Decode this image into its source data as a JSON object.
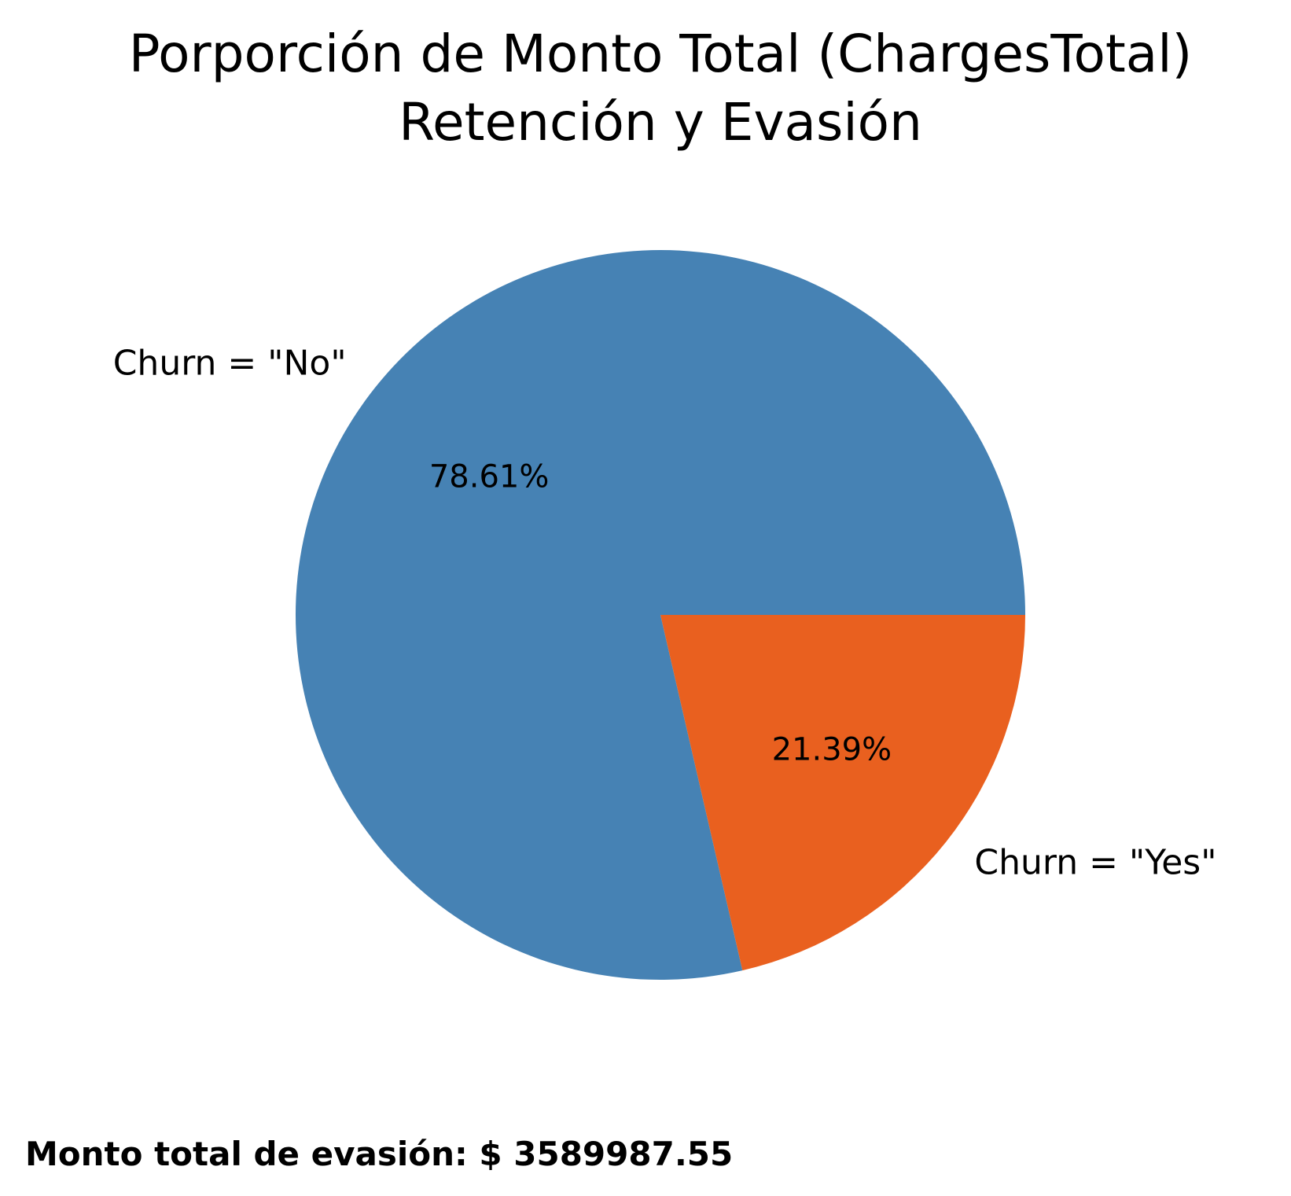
{
  "chart_data": {
    "type": "pie",
    "title_lines": [
      "Porporción de Monto Total (ChargesTotal)",
      "Retención y Evasión"
    ],
    "labels": [
      "Churn = \"No\"",
      "Churn = \"Yes\""
    ],
    "values": [
      78.61,
      21.39
    ],
    "pct_labels": [
      "78.61%",
      "21.39%"
    ],
    "colors": [
      "#4682b4",
      "#e9601f"
    ],
    "start_angle_deg": 0,
    "direction": "counterclockwise",
    "footer": "Monto total de evasión: $ 3589987.55"
  }
}
